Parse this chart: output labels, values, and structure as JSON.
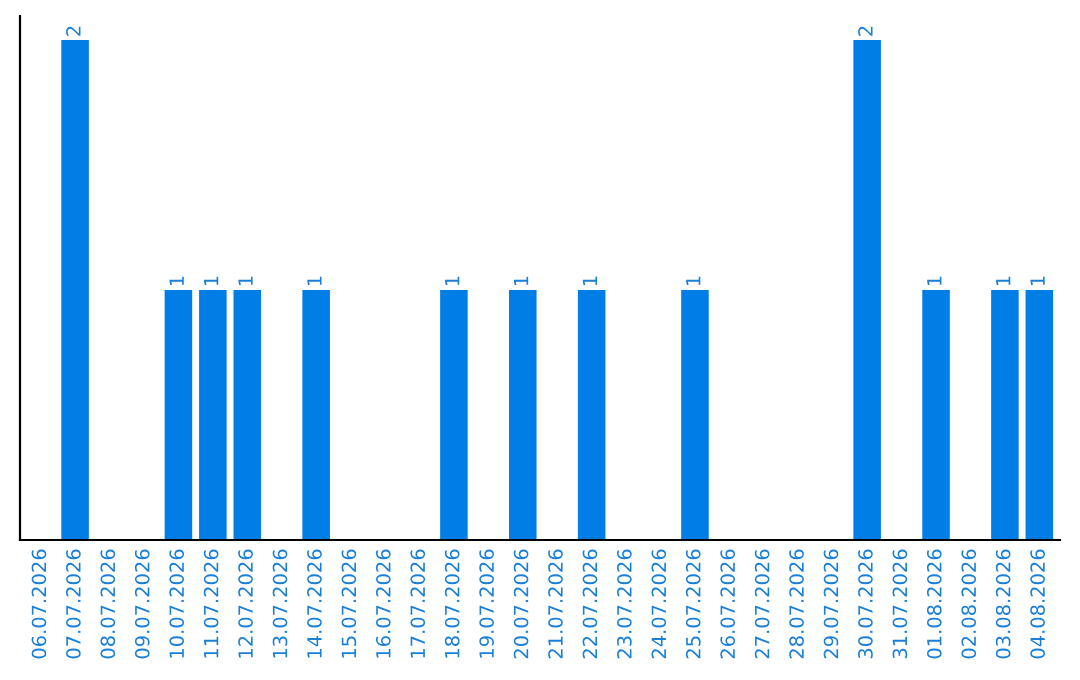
{
  "chart_data": {
    "type": "bar",
    "categories": [
      "06.07.2026",
      "07.07.2026",
      "08.07.2026",
      "09.07.2026",
      "10.07.2026",
      "11.07.2026",
      "12.07.2026",
      "13.07.2026",
      "14.07.2026",
      "15.07.2026",
      "16.07.2026",
      "17.07.2026",
      "18.07.2026",
      "19.07.2026",
      "20.07.2026",
      "21.07.2026",
      "22.07.2026",
      "23.07.2026",
      "24.07.2026",
      "25.07.2026",
      "26.07.2026",
      "27.07.2026",
      "28.07.2026",
      "29.07.2026",
      "30.07.2026",
      "31.07.2026",
      "01.08.2026",
      "02.08.2026",
      "03.08.2026",
      "04.08.2026"
    ],
    "values": [
      0,
      2,
      0,
      0,
      1,
      1,
      1,
      0,
      1,
      0,
      0,
      0,
      1,
      0,
      1,
      0,
      1,
      0,
      0,
      1,
      0,
      0,
      0,
      0,
      2,
      0,
      1,
      0,
      1,
      1
    ],
    "value_labels": [
      null,
      "2",
      null,
      null,
      "1",
      "1",
      "1",
      null,
      "1",
      null,
      null,
      null,
      "1",
      null,
      "1",
      null,
      "1",
      null,
      null,
      "1",
      null,
      null,
      null,
      null,
      "2",
      null,
      "1",
      null,
      "1",
      "1"
    ],
    "color": "#007ee5",
    "tick_labels": "x",
    "grid": false,
    "legend": false
  }
}
